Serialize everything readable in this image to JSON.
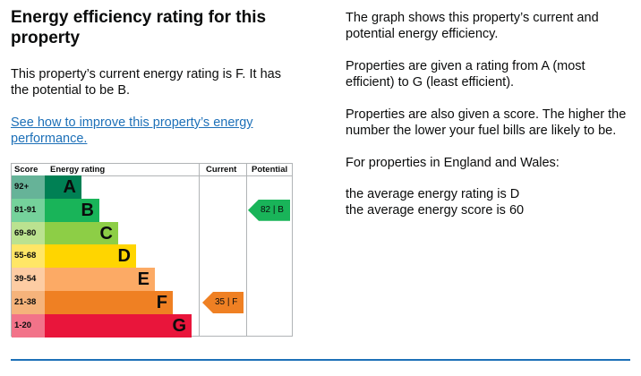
{
  "left": {
    "title": "Energy efficiency rating for this property",
    "summary": "This property’s current energy rating is F. It has the potential to be B.",
    "link": "See how to improve this property’s energy performance."
  },
  "chart": {
    "headers": {
      "score": "Score",
      "rating": "Energy rating",
      "current": "Current",
      "potential": "Potential"
    },
    "rows": [
      {
        "score": "92+",
        "letter": "A",
        "color": "#008054",
        "light": "#66b398"
      },
      {
        "score": "81-91",
        "letter": "B",
        "color": "#19b459",
        "light": "#75d29b"
      },
      {
        "score": "69-80",
        "letter": "C",
        "color": "#8dce46",
        "light": "#bbe290"
      },
      {
        "score": "55-68",
        "letter": "D",
        "color": "#ffd500",
        "light": "#ffe666"
      },
      {
        "score": "39-54",
        "letter": "E",
        "color": "#fcaa65",
        "light": "#fdcca3"
      },
      {
        "score": "21-38",
        "letter": "F",
        "color": "#ef8023",
        "light": "#f5b37b"
      },
      {
        "score": "1-20",
        "letter": "G",
        "color": "#e9153b",
        "light": "#f27389"
      }
    ],
    "current": {
      "score": "35",
      "letter": "F",
      "label": "35 | F",
      "color": "#ef8023"
    },
    "potential": {
      "score": "82",
      "letter": "B",
      "label": "82 | B",
      "color": "#19b459"
    }
  },
  "right": {
    "p1": "The graph shows this property’s current and potential energy efficiency.",
    "p2": "Properties are given a rating from A (most efficient) to G (least efficient).",
    "p3": "Properties are also given a score. The higher the number the lower your fuel bills are likely to be.",
    "p4": "For properties in England and Wales:",
    "p5": "the average energy rating is D",
    "p6": "the average energy score is 60"
  }
}
